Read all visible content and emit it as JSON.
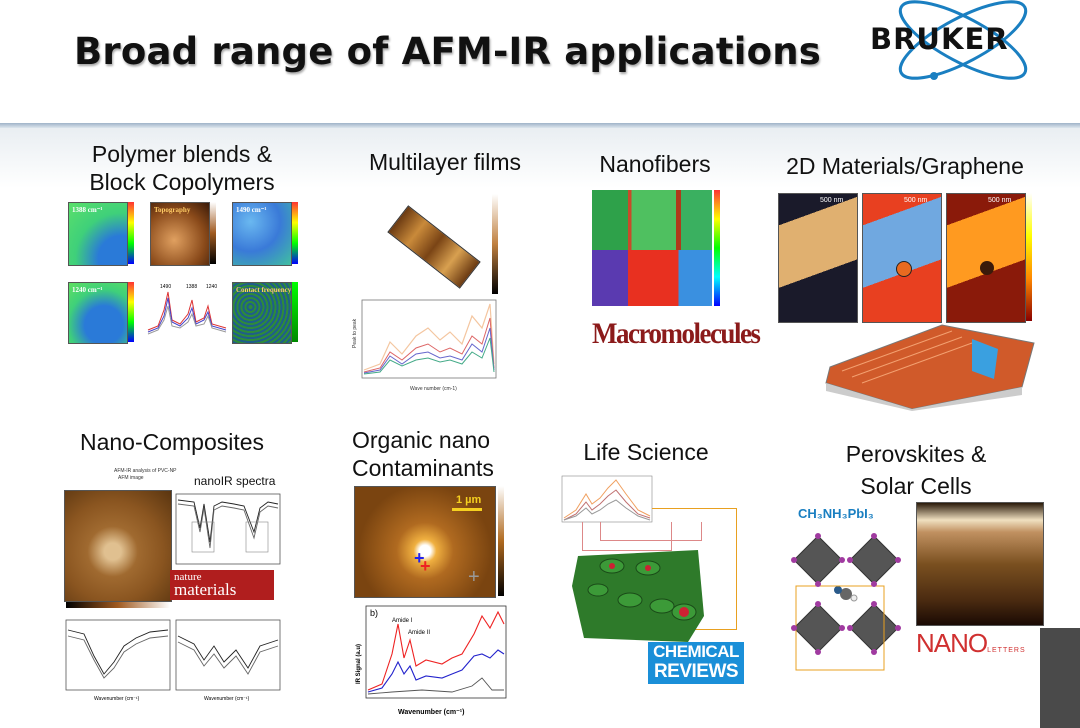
{
  "slide": {
    "title": "Broad range of AFM-IR applications",
    "logo_text": "BRUKER",
    "brand_color": "#1a7fc1"
  },
  "sections": {
    "polymer": {
      "label_line1": "Polymer blends &",
      "label_line2": "Block Copolymers",
      "map_labels": [
        "1388 cm⁻¹",
        "Topography",
        "1490 cm⁻¹",
        "1240 cm⁻¹",
        "Contact frequency"
      ],
      "peak_labels": [
        "1490",
        "1388",
        "1240"
      ]
    },
    "multilayer": {
      "label": "Multilayer films",
      "xlabel": "Wave number (cm-1)",
      "ylabel": "Peak to peak"
    },
    "nanofibers": {
      "label": "Nanofibers",
      "journal": "Macromolecules"
    },
    "graphene": {
      "label": "2D Materials/Graphene",
      "scale_labels": [
        "500 nm",
        "500 nm",
        "500 nm"
      ]
    },
    "composites": {
      "label": "Nano-Composites",
      "spectra_title": "nanoIR spectra",
      "image_title_1": "AFM-IR analysis of PVC-NP",
      "image_title_2": "AFM image",
      "journal_line1": "nature",
      "journal_line2": "materials",
      "x_label": "Wavenumber (cm⁻¹)"
    },
    "contaminants": {
      "label_line1": "Organic nano",
      "label_line2": "Contaminants",
      "scale": "1 µm",
      "panel_letter": "b)",
      "amide1": "Amide I",
      "amide2": "Amide II",
      "ylabel": "IR Signal (a.u)",
      "xlabel": "Wavenumber (cm⁻¹)"
    },
    "life": {
      "label": "Life Science",
      "journal_line1": "CHEMICAL",
      "journal_line2": "REVIEWS"
    },
    "perovskite": {
      "label_line1": "Perovskites &",
      "label_line2": "Solar Cells",
      "formula": "CH₃NH₃PbI₃",
      "journal": "NANO",
      "journal_small": "LETTERS"
    }
  }
}
